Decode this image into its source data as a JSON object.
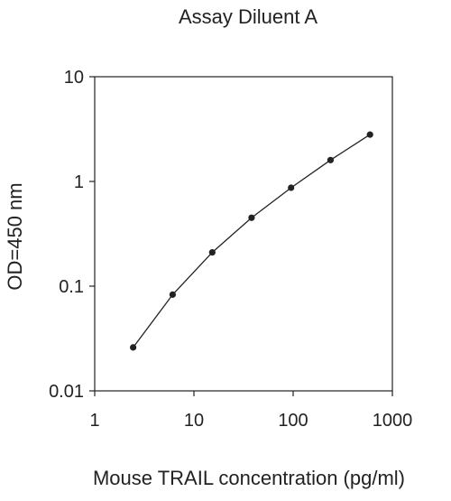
{
  "chart_data": {
    "type": "line",
    "title": "Assay Diluent A",
    "xlabel": "Mouse TRAIL concentration (pg/ml)",
    "ylabel": "OD=450 nm",
    "xscale": "log",
    "yscale": "log",
    "xlim": [
      1,
      1000
    ],
    "ylim": [
      0.01,
      10
    ],
    "x_ticks": [
      "1",
      "10",
      "100",
      "1000"
    ],
    "y_ticks": [
      "0.01",
      "0.1",
      "1",
      "10"
    ],
    "grid": false,
    "legend": "none",
    "series": [
      {
        "x": [
          2.44,
          6.1,
          15.3,
          38.1,
          95.3,
          238,
          595
        ],
        "y": [
          0.026,
          0.083,
          0.21,
          0.45,
          0.87,
          1.6,
          2.8
        ]
      }
    ],
    "colors": {
      "line": "#222222",
      "marker": "#222222",
      "frame": "#222222"
    }
  }
}
